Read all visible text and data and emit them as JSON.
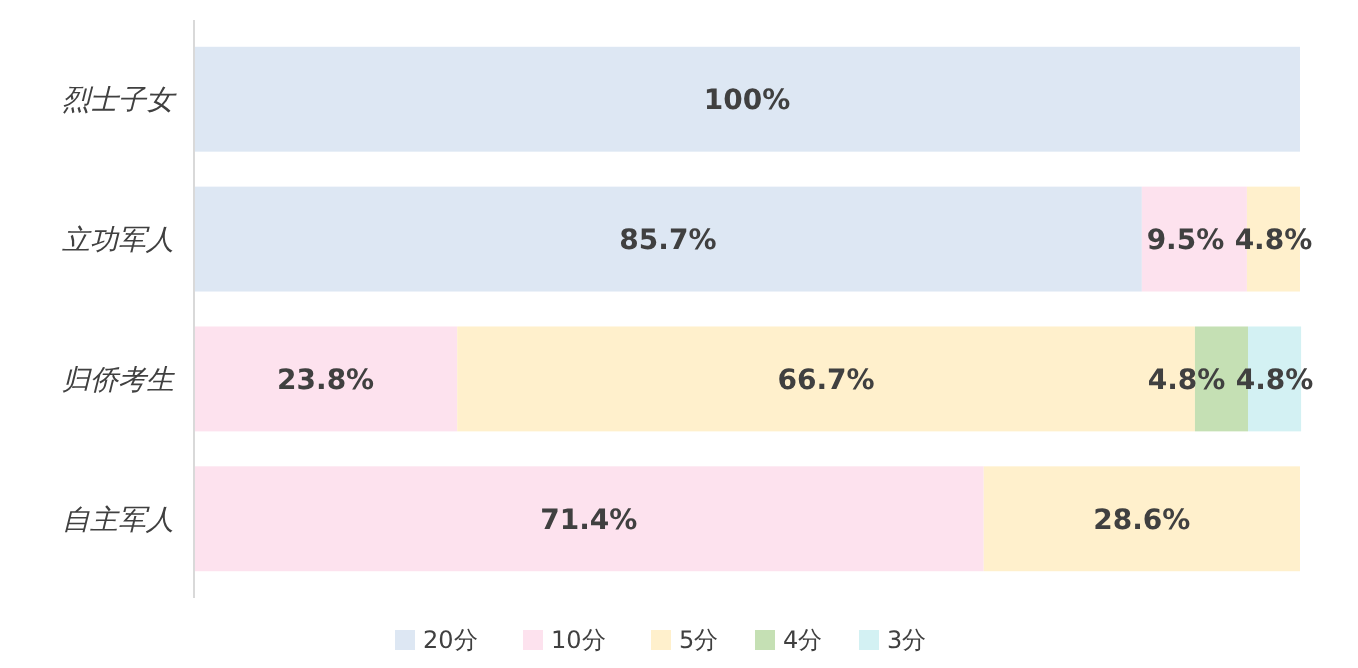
{
  "chart_data": {
    "type": "bar",
    "orientation": "horizontal",
    "stacked": true,
    "categories": [
      "烈士子女",
      "立功军人",
      "归侨考生",
      "自主军人"
    ],
    "xlim": [
      0,
      100
    ],
    "tick_labels": "y",
    "legend": "bottom",
    "series": [
      {
        "name": "20分",
        "color": "#dde7f3",
        "values": [
          100,
          85.7,
          null,
          null
        ],
        "value_labels": [
          "100%",
          "85.7%",
          null,
          null
        ]
      },
      {
        "name": "10分",
        "color": "#fde2ee",
        "values": [
          null,
          9.5,
          23.8,
          71.4
        ],
        "value_labels": [
          null,
          "9.5%",
          "23.8%",
          "71.4%"
        ]
      },
      {
        "name": "5分",
        "color": "#fff0cc",
        "values": [
          null,
          4.8,
          66.7,
          28.6
        ],
        "value_labels": [
          null,
          "4.8%",
          "66.7%",
          "28.6%"
        ]
      },
      {
        "name": "4分",
        "color": "#c5e0b4",
        "values": [
          null,
          null,
          4.8,
          null
        ],
        "value_labels": [
          null,
          null,
          "4.8%",
          null
        ]
      },
      {
        "name": "3分",
        "color": "#d3f1f3",
        "values": [
          null,
          null,
          4.8,
          null
        ],
        "value_labels": [
          null,
          null,
          "4.8%",
          null
        ]
      }
    ]
  }
}
